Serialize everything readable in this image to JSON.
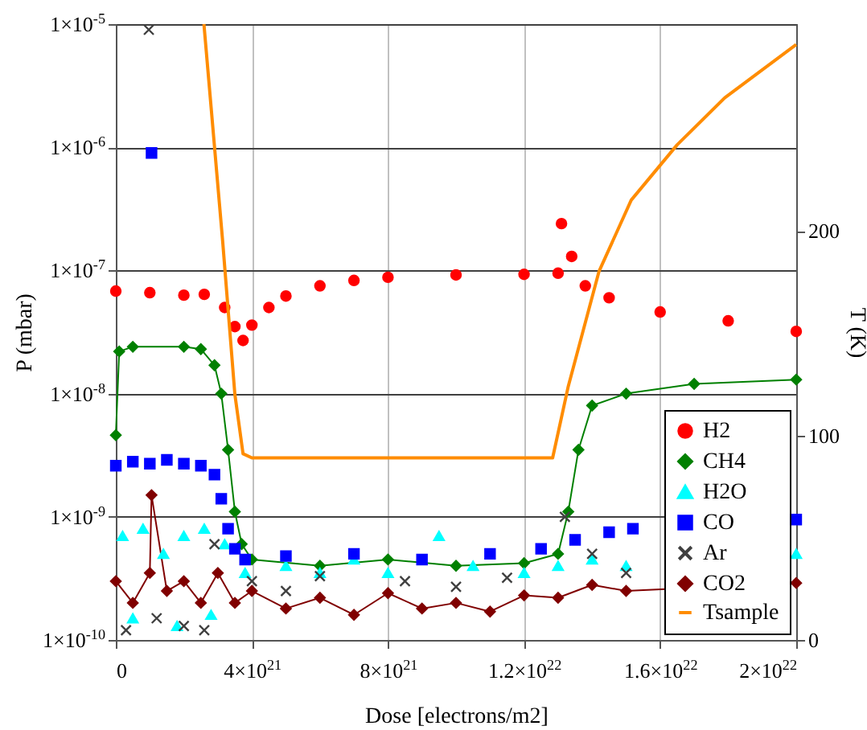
{
  "chart_data": {
    "type": "scatter",
    "xlabel": "Dose [electrons/m2]",
    "ylabel": "P (mbar)",
    "y2label": "T (K)",
    "log": "y",
    "grid": true,
    "legend": "bottom right",
    "xlim": [
      0,
      2e+22
    ],
    "xticks": [
      0,
      {
        "value": 4e+21,
        "label": "4×10$^{21}$"
      },
      {
        "value": 8e+21,
        "label": "8×10$^{21}$"
      },
      {
        "value": 1.2e+22,
        "label": "1.2×10$^{22}$"
      },
      {
        "value": 1.6e+22,
        "label": "1.6×10$^{22}$"
      },
      {
        "value": 2e+22,
        "label": "2×10$^{22}$"
      }
    ],
    "ylim": [
      1e-10,
      1e-05
    ],
    "yticks": [
      {
        "value": 1e-10,
        "label": "1×10$^{-10}$"
      },
      {
        "value": 1e-09,
        "label": "1×10$^{-9}$"
      },
      {
        "value": 1e-08,
        "label": "1×10$^{-8}$"
      },
      {
        "value": 1e-07,
        "label": "1×10$^{-7}$"
      },
      {
        "value": 1e-06,
        "label": "1×10$^{-6}$"
      },
      {
        "value": 1e-05,
        "label": "1×10$^{-5}$"
      }
    ],
    "y2lim": [
      0,
      301
    ],
    "y2ticks": [
      0,
      100,
      200
    ],
    "series": [
      {
        "name": "H2",
        "marker": "circle",
        "color": "#ff0000",
        "x": [
          0,
          1e+21,
          2e+21,
          2.6e+21,
          3.2e+21,
          3.5e+21,
          3.74e+21,
          4e+21,
          4.5e+21,
          5e+21,
          6e+21,
          7e+21,
          8e+21,
          1e+22,
          1.2e+22,
          1.3e+22,
          1.31e+22,
          1.34e+22,
          1.38e+22,
          1.45e+22,
          1.6e+22,
          1.8e+22,
          2e+22
        ],
        "values": [
          6.8e-08,
          6.6e-08,
          6.3e-08,
          6.4e-08,
          5e-08,
          3.5e-08,
          2.7e-08,
          3.6e-08,
          5e-08,
          6.2e-08,
          7.5e-08,
          8.3e-08,
          8.8e-08,
          9.2e-08,
          9.3e-08,
          9.5e-08,
          2.4e-07,
          1.3e-07,
          7.5e-08,
          6e-08,
          4.6e-08,
          3.9e-08,
          3.2e-08
        ]
      },
      {
        "name": "CH4",
        "type": "line",
        "marker": "diamond",
        "color": "#008000",
        "x": [
          0,
          1e+20,
          5e+20,
          2e+21,
          2.5e+21,
          2.9e+21,
          3.1e+21,
          3.3e+21,
          3.5e+21,
          3.7e+21,
          4e+21,
          6e+21,
          8e+21,
          1e+22,
          1.2e+22,
          1.3e+22,
          1.33e+22,
          1.36e+22,
          1.4e+22,
          1.5e+22,
          1.7e+22,
          2e+22
        ],
        "values": [
          4.6e-09,
          2.2e-08,
          2.4e-08,
          2.4e-08,
          2.3e-08,
          1.7e-08,
          1e-08,
          3.5e-09,
          1.1e-09,
          6e-10,
          4.5e-10,
          4e-10,
          4.5e-10,
          4e-10,
          4.2e-10,
          5e-10,
          1.1e-09,
          3.5e-09,
          8e-09,
          1e-08,
          1.2e-08,
          1.3e-08
        ]
      },
      {
        "name": "H2O",
        "marker": "triangle",
        "color": "#00ffff",
        "x": [
          2e+20,
          5e+20,
          8e+20,
          1.4e+21,
          1.8e+21,
          2e+21,
          2.6e+21,
          2.8e+21,
          3.2e+21,
          3.8e+21,
          5e+21,
          6e+21,
          7e+21,
          8e+21,
          9.5e+21,
          1.05e+22,
          1.2e+22,
          1.3e+22,
          1.4e+22,
          1.5e+22,
          2e+22
        ],
        "values": [
          7e-10,
          1.5e-10,
          8e-10,
          5e-10,
          1.3e-10,
          7e-10,
          8e-10,
          1.6e-10,
          6e-10,
          3.5e-10,
          4e-10,
          3.5e-10,
          4.5e-10,
          3.5e-10,
          7e-10,
          4e-10,
          3.5e-10,
          4e-10,
          4.5e-10,
          4e-10,
          5e-10
        ]
      },
      {
        "name": "CO",
        "marker": "square",
        "color": "#0000ff",
        "x": [
          0,
          5e+20,
          1e+21,
          1.05e+21,
          1.5e+21,
          2e+21,
          2.5e+21,
          2.9e+21,
          3.1e+21,
          3.3e+21,
          3.5e+21,
          3.8e+21,
          5e+21,
          7e+21,
          9e+21,
          1.1e+22,
          1.25e+22,
          1.35e+22,
          1.45e+22,
          1.52e+22,
          2e+22
        ],
        "values": [
          2.6e-09,
          2.8e-09,
          2.7e-09,
          9e-07,
          2.9e-09,
          2.7e-09,
          2.6e-09,
          2.2e-09,
          1.4e-09,
          8e-10,
          5.5e-10,
          4.5e-10,
          4.8e-10,
          5e-10,
          4.5e-10,
          5e-10,
          5.5e-10,
          6.5e-10,
          7.5e-10,
          8e-10,
          9.5e-10
        ]
      },
      {
        "name": "Ar",
        "marker": "cross",
        "color": "#404040",
        "x": [
          3e+20,
          9.7e+20,
          1.2e+21,
          2e+21,
          2.6e+21,
          2.9e+21,
          4e+21,
          5e+21,
          6e+21,
          8.5e+21,
          1e+22,
          1.15e+22,
          1.32e+22,
          1.4e+22,
          1.5e+22
        ],
        "values": [
          1.2e-10,
          9e-06,
          1.5e-10,
          1.3e-10,
          1.2e-10,
          6e-10,
          3e-10,
          2.5e-10,
          3.3e-10,
          3e-10,
          2.7e-10,
          3.2e-10,
          1e-09,
          5e-10,
          3.5e-10
        ]
      },
      {
        "name": "CO2",
        "type": "line",
        "marker": "diamond",
        "color": "#800000",
        "x": [
          0,
          5e+20,
          1e+21,
          1.05e+21,
          1.5e+21,
          2e+21,
          2.5e+21,
          3e+21,
          3.5e+21,
          4e+21,
          5e+21,
          6e+21,
          7e+21,
          8e+21,
          9e+21,
          1e+22,
          1.1e+22,
          1.2e+22,
          1.3e+22,
          1.4e+22,
          1.5e+22,
          2e+22
        ],
        "values": [
          3e-10,
          2e-10,
          3.5e-10,
          1.5e-09,
          2.5e-10,
          3e-10,
          2e-10,
          3.5e-10,
          2e-10,
          2.5e-10,
          1.8e-10,
          2.2e-10,
          1.6e-10,
          2.4e-10,
          1.8e-10,
          2e-10,
          1.7e-10,
          2.3e-10,
          2.2e-10,
          2.8e-10,
          2.5e-10,
          2.9e-10
        ]
      },
      {
        "name": "Tsample",
        "type": "line",
        "marker": "none",
        "axis": "y2",
        "color": "#ff8c00",
        "x": [
          2.59e+21,
          3.14e+21,
          3.5e+21,
          3.74e+21,
          4e+21,
          6e+21,
          8e+21,
          1e+22,
          1.2e+22,
          1.284e+22,
          1.33e+22,
          1.42e+22,
          1.515e+22,
          1.65e+22,
          1.79e+22,
          2e+22
        ],
        "values": [
          301,
          195,
          120,
          91,
          89,
          89,
          89,
          89,
          89,
          89,
          124,
          180,
          215,
          242,
          265,
          291
        ]
      }
    ]
  }
}
